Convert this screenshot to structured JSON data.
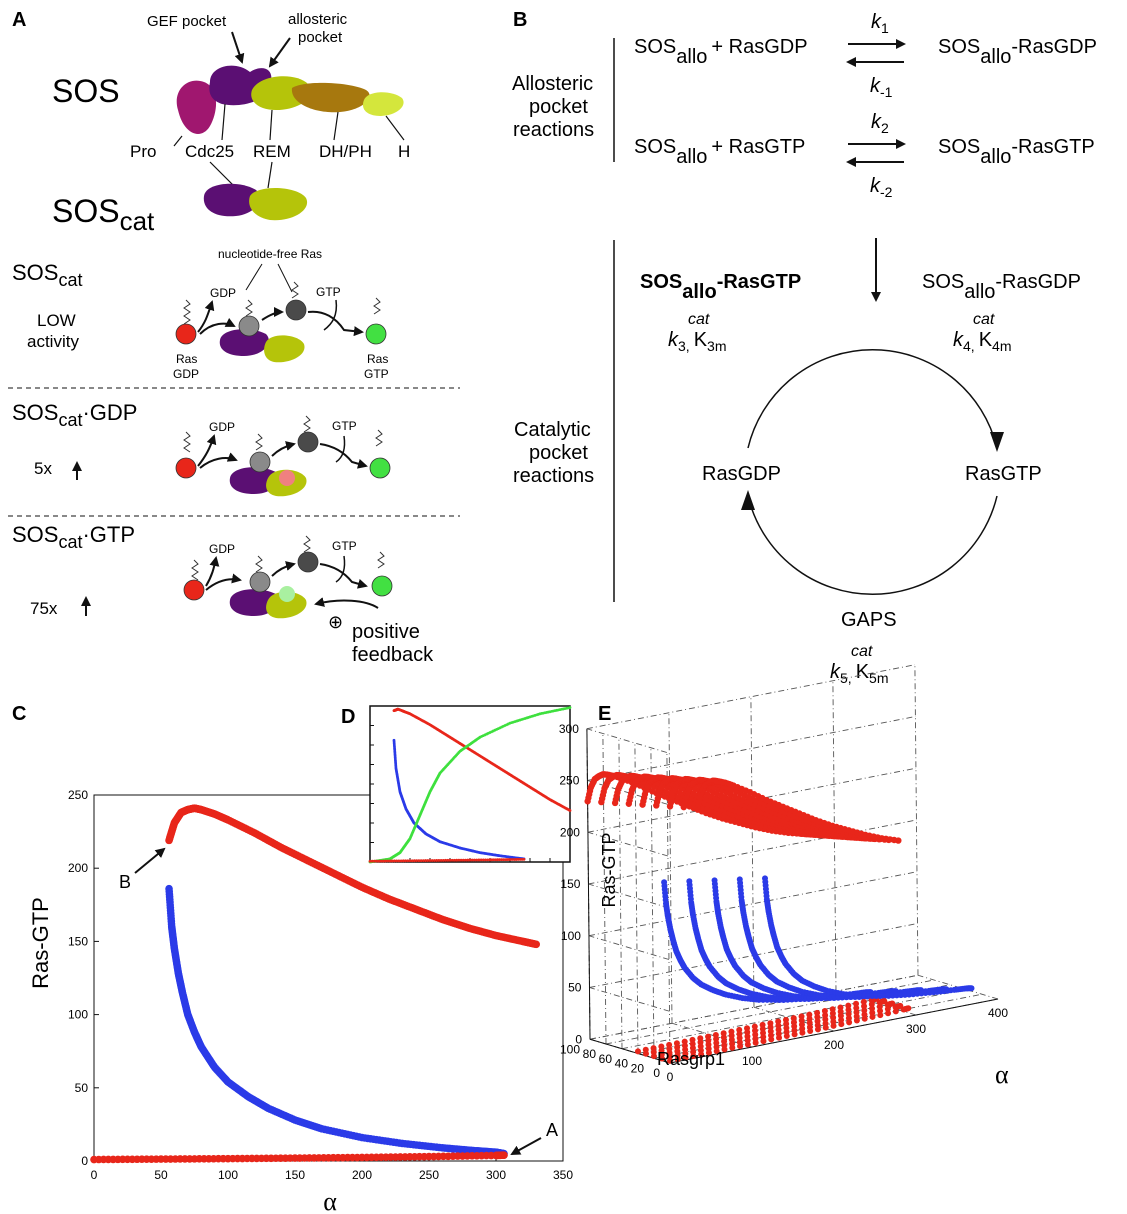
{
  "panel_letters": {
    "a": "A",
    "b": "B",
    "c": "C",
    "d": "D",
    "e": "E"
  },
  "panel_a": {
    "labels": {
      "gef_pocket": "GEF pocket",
      "allosteric_line1": "allosteric",
      "allosteric_line2": "pocket",
      "sos": "SOS",
      "pro": "Pro",
      "cdc25": "Cdc25",
      "rem": "REM",
      "dhph": "DH/PH",
      "h": "H",
      "soscat_base": "SOS",
      "soscat_sub": "cat",
      "nucleotide_free": "nucleotide-free Ras",
      "gdp": "GDP",
      "gtp": "GTP",
      "ras_gdp_line1": "Ras",
      "ras_gdp_line2": "GDP",
      "ras_gtp_line1": "Ras",
      "ras_gtp_line2": "GTP",
      "low": "LOW",
      "activity": "activity",
      "gdp_state_base": "SOS",
      "gdp_state_sub": "cat",
      "gdp_state_tail": "·GDP",
      "gtp_state_base": "SOS",
      "gtp_state_sub": "cat",
      "gtp_state_tail": "·GTP",
      "fold_5x": "5x",
      "fold_75x": "75x",
      "positive": "positive",
      "feedback": "feedback",
      "plus": "⊕"
    },
    "colors": {
      "pro": "#a0176f",
      "cdc25": "#5b0f73",
      "rem": "#b5c40a",
      "dhph": "#a7780e",
      "h": "#d4e63c",
      "ras_gdp": "#e8261a",
      "ras_gtp": "#42e042",
      "nucleotide_free": "#8a8a8a",
      "ras_dark": "#4a4a4a",
      "allo_gdp": "#f08080",
      "allo_gtp": "#a9f0a0"
    }
  },
  "panel_b": {
    "labels": {
      "allosteric_line1": "Allosteric",
      "allosteric_line2": "pocket",
      "allosteric_line3": "reactions",
      "sos": "SOS",
      "allo": "allo",
      "plus_rasgdp": "+ RasGDP",
      "plus_rasgtp": "+ RasGTP",
      "dash_rasgdp": "-RasGDP",
      "dash_rasgtp": "-RasGTP",
      "k1": "k",
      "k1_sub": "1",
      "km1": "k",
      "km1_sub": "-1",
      "k2": "k",
      "k2_sub": "2",
      "km2": "k",
      "km2_sub": "-2",
      "catalytic_line1": "Catalytic",
      "catalytic_line2": "pocket",
      "catalytic_line3": "reactions",
      "sos_allo_rasgtp_bold": "SOS",
      "sos_allo_rasgtp_bold_sub": "allo",
      "sos_allo_rasgtp_bold_tail": "-RasGTP",
      "k3": "k",
      "k3_sub": "3,",
      "k3m": "K",
      "k3m_sub": "3m",
      "k4": "k",
      "k4_sub": "4,",
      "k4m": "K",
      "k4m_sub": "4m",
      "cat": "cat",
      "rasgdp": "RasGDP",
      "rasgtp": "RasGTP",
      "gaps": "GAPS",
      "k5": "k",
      "k5_sub": "5,",
      "k5m": "K",
      "k5m_sub": "5m"
    }
  },
  "panel_c": {
    "ylabel": "Ras-GTP",
    "xlabel": "α",
    "annotation_a": "A",
    "annotation_b": "B"
  },
  "panel_e": {
    "zlabel": "Ras-GTP",
    "ylabel": "Rasgrp1",
    "xlabel": "α"
  },
  "chart_data": [
    {
      "type": "scatter",
      "title": "",
      "xlabel": "α",
      "ylabel": "Ras-GTP",
      "xlim": [
        0,
        350
      ],
      "ylim": [
        0,
        250
      ],
      "xticks": [
        0,
        50,
        100,
        150,
        200,
        250,
        300,
        350
      ],
      "yticks": [
        0,
        50,
        100,
        150,
        200,
        250
      ],
      "grid": false,
      "series": [
        {
          "color": "#e8261a",
          "x": [
            56,
            60,
            65,
            70,
            75,
            80,
            90,
            100,
            120,
            140,
            160,
            180,
            200,
            220,
            240,
            260,
            280,
            300,
            320,
            330
          ],
          "y": [
            219,
            231,
            238,
            240,
            241,
            240,
            237,
            233,
            224,
            214,
            205,
            196,
            187,
            179,
            172,
            165,
            159,
            154,
            150,
            148
          ]
        },
        {
          "color": "#2b3be8",
          "x": [
            56,
            58,
            60,
            63,
            66,
            70,
            75,
            80,
            90,
            100,
            115,
            130,
            150,
            170,
            200,
            230,
            260,
            285,
            300,
            306
          ],
          "y": [
            186,
            160,
            145,
            128,
            115,
            100,
            88,
            78,
            64,
            54,
            44,
            36,
            28,
            22,
            16,
            12,
            9,
            7,
            6,
            5
          ]
        },
        {
          "color": "#e8261a",
          "x": [
            0,
            50,
            100,
            150,
            200,
            250,
            300,
            306
          ],
          "y": [
            1,
            1.3,
            1.6,
            2,
            2.4,
            3,
            3.8,
            4
          ]
        }
      ]
    },
    {
      "type": "scatter",
      "title": "",
      "xlabel": "",
      "ylabel": "",
      "grid": false,
      "xlim": [
        0,
        1
      ],
      "ylim": [
        0,
        1
      ],
      "series": [
        {
          "color": "#e8261a",
          "x": [
            0.12,
            0.14,
            0.2,
            0.3,
            0.4,
            0.5,
            0.6,
            0.7,
            0.8,
            0.9,
            1.0
          ],
          "y": [
            0.97,
            0.98,
            0.95,
            0.88,
            0.8,
            0.72,
            0.64,
            0.56,
            0.48,
            0.4,
            0.33
          ]
        },
        {
          "color": "#2b3be8",
          "x": [
            0.12,
            0.13,
            0.15,
            0.18,
            0.22,
            0.28,
            0.35,
            0.45,
            0.55,
            0.65,
            0.77
          ],
          "y": [
            0.78,
            0.6,
            0.45,
            0.34,
            0.25,
            0.18,
            0.13,
            0.09,
            0.06,
            0.04,
            0.02
          ]
        },
        {
          "color": "#3ee03e",
          "x": [
            0.0,
            0.1,
            0.15,
            0.2,
            0.25,
            0.3,
            0.35,
            0.45,
            0.55,
            0.7,
            0.85,
            1.0
          ],
          "y": [
            0.0,
            0.02,
            0.06,
            0.15,
            0.3,
            0.45,
            0.57,
            0.71,
            0.8,
            0.89,
            0.95,
            0.99
          ]
        },
        {
          "color": "#e8261a",
          "x": [
            0.0,
            0.2,
            0.4,
            0.6,
            0.77
          ],
          "y": [
            0.005,
            0.008,
            0.011,
            0.014,
            0.017
          ]
        }
      ]
    },
    {
      "type": "scatter",
      "title": "",
      "xlabel": "α",
      "ylabel": "Rasgrp1",
      "zlabel": "Ras-GTP",
      "xlim": [
        0,
        400
      ],
      "ylim": [
        0,
        100
      ],
      "zlim": [
        0,
        300
      ],
      "xticks": [
        0,
        100,
        200,
        300,
        400
      ],
      "yticks": [
        0,
        20,
        40,
        60,
        80,
        100
      ],
      "zticks": [
        0,
        50,
        100,
        150,
        200,
        250,
        300
      ],
      "grid": true,
      "slices_rasgrp1": [
        100,
        90,
        80,
        70,
        60,
        50,
        40,
        30,
        20,
        10,
        0
      ],
      "series": [
        {
          "color": "#e8261a",
          "name": "",
          "x": [
            0,
            50,
            100,
            150,
            200,
            250,
            300
          ],
          "y": [
            100,
            100,
            100,
            100,
            100,
            100,
            100
          ],
          "z": [
            180,
            250,
            230,
            205,
            185,
            165,
            150
          ]
        },
        {
          "color": "#2b3be8",
          "name": "",
          "x": [
            60,
            100,
            150,
            200,
            250,
            300
          ],
          "y": [
            40,
            40,
            40,
            40,
            40,
            40
          ],
          "z": [
            170,
            60,
            28,
            15,
            8,
            5
          ]
        }
      ]
    }
  ]
}
